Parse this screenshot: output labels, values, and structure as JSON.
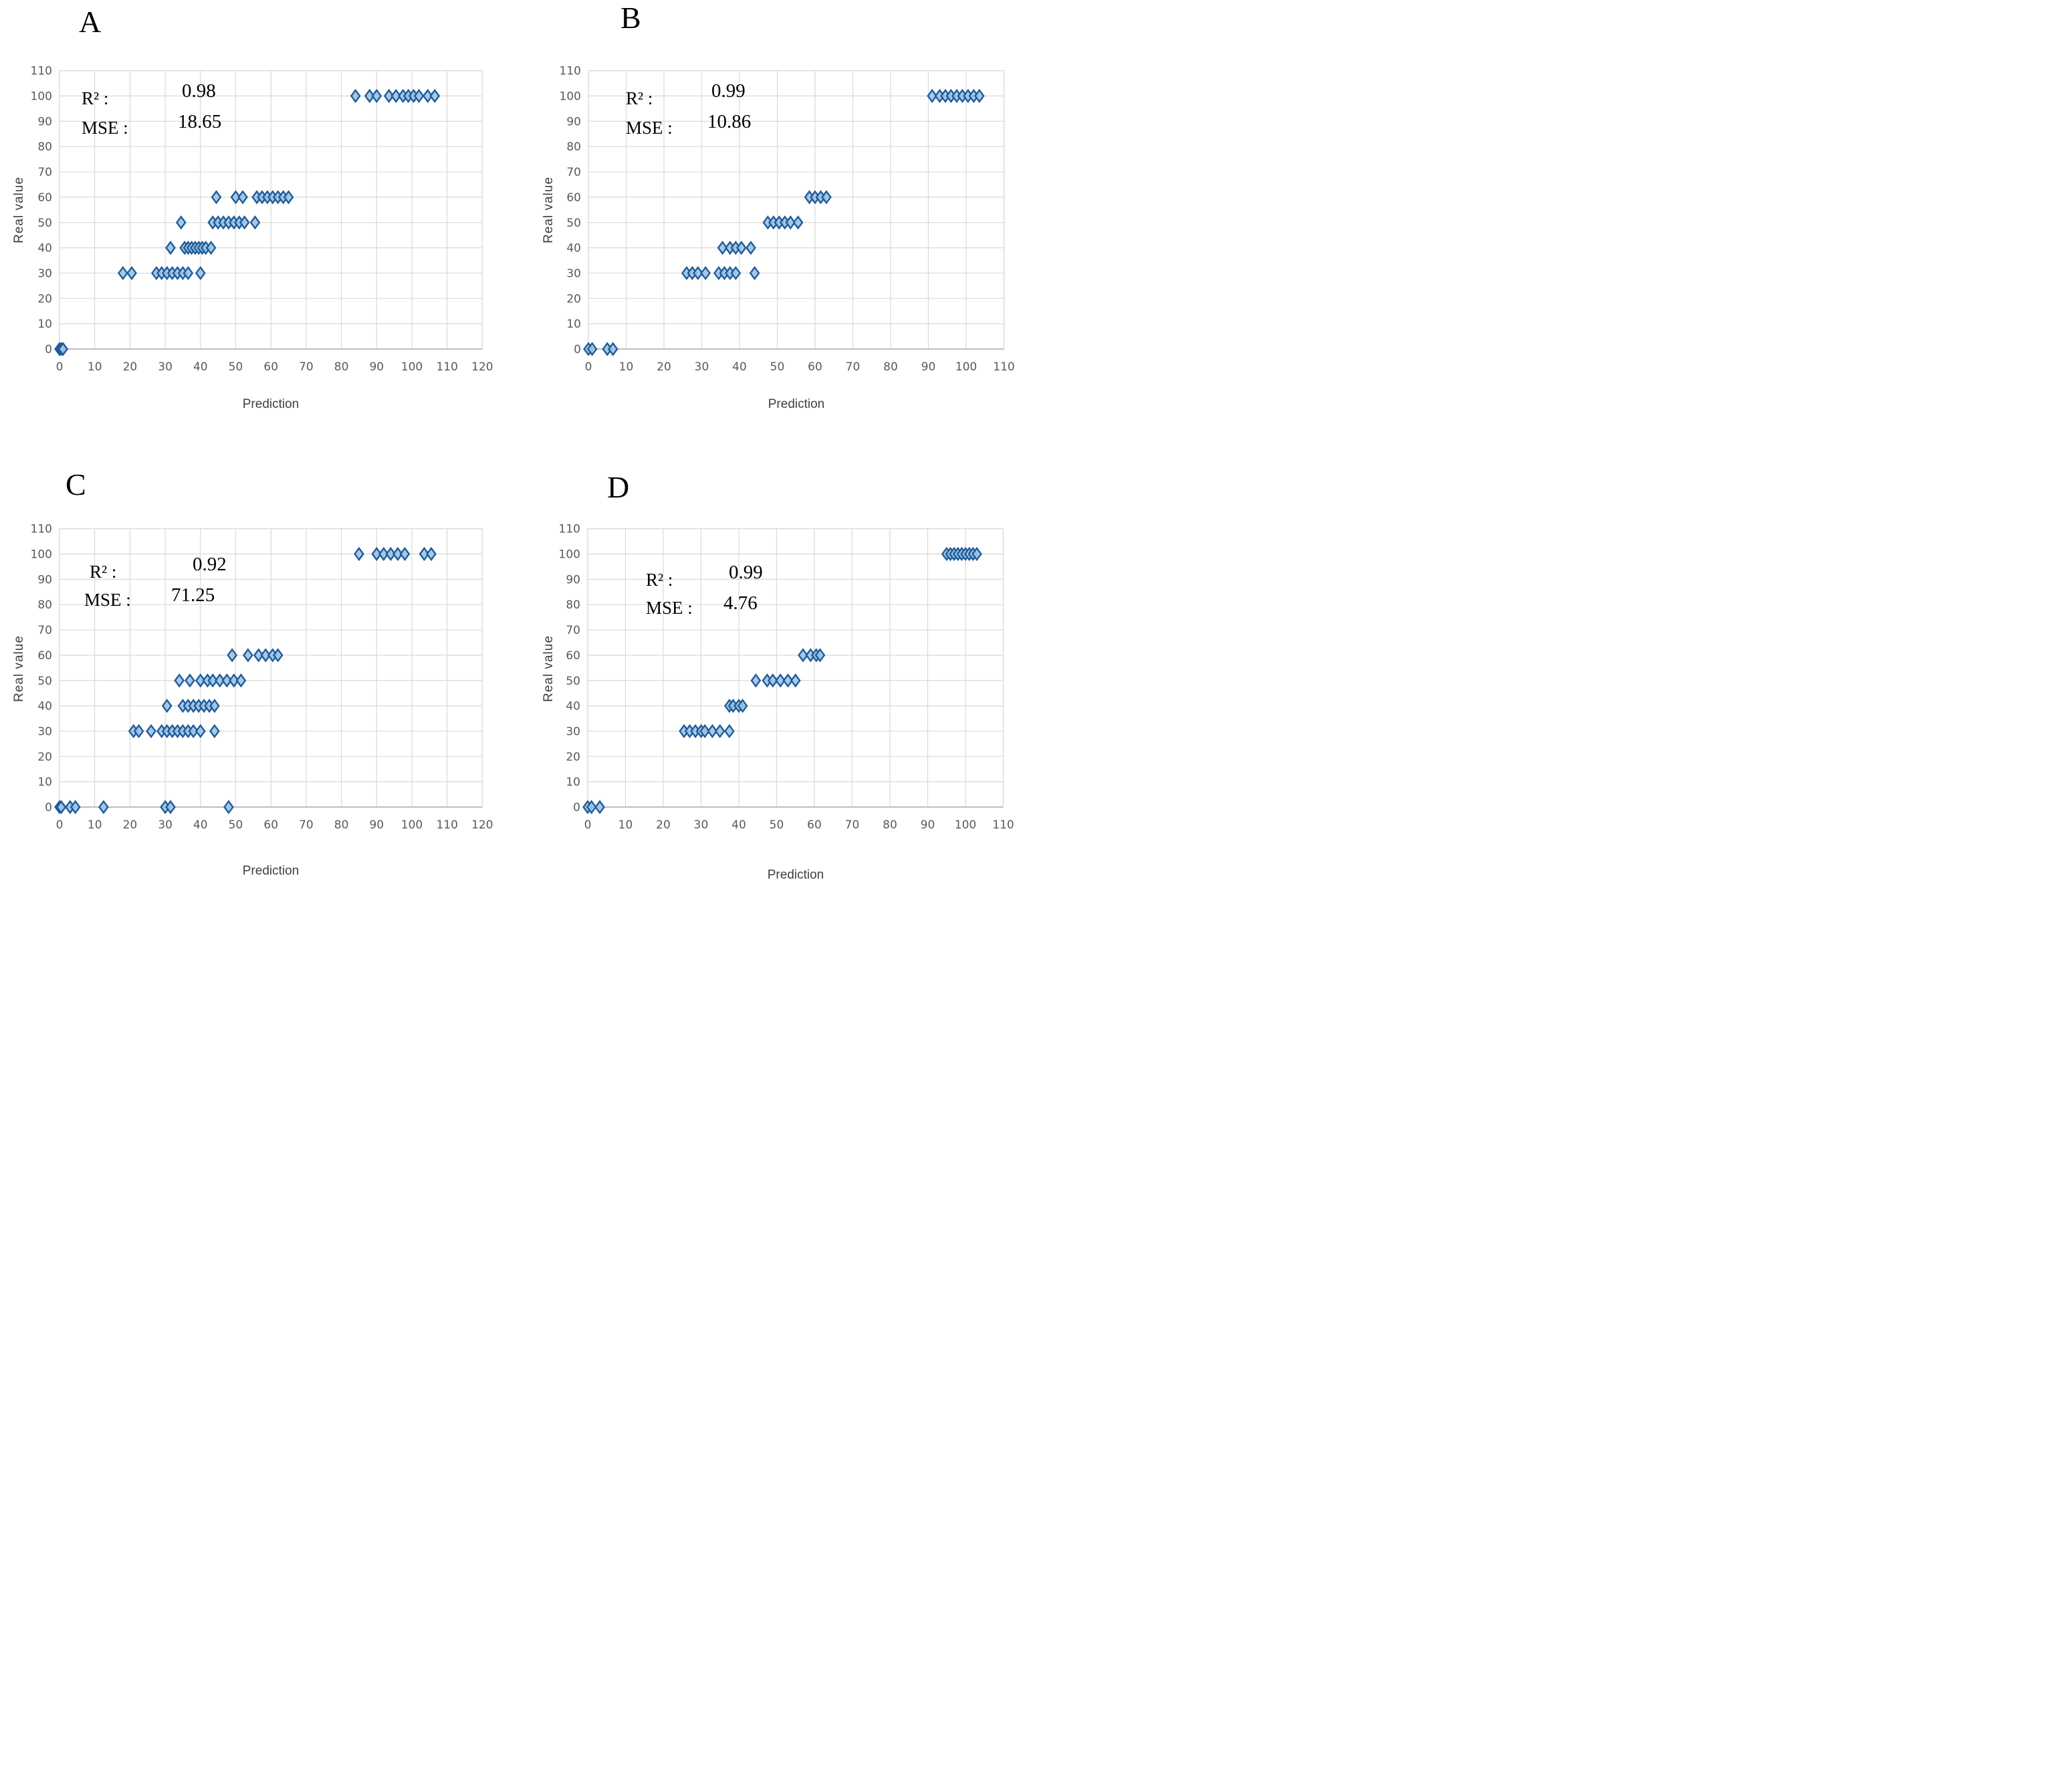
{
  "style": {
    "marker_fill": "#9DC3E6",
    "marker_stroke": "#1F5C99",
    "grid_color": "#D9D9D9",
    "axis_color": "#BFBFBF",
    "tick_color": "#595959",
    "label_color": "#3F3F3F"
  },
  "chart_data": [
    {
      "type": "scatter",
      "panel_label": "A",
      "xlabel": "Prediction",
      "ylabel": "Real value",
      "xlim": [
        0,
        120
      ],
      "ylim": [
        0,
        110
      ],
      "grid": true,
      "x_ticks": [
        0,
        10,
        20,
        30,
        40,
        50,
        60,
        70,
        80,
        90,
        100,
        110,
        120
      ],
      "y_ticks": [
        0,
        10,
        20,
        30,
        40,
        50,
        60,
        70,
        80,
        90,
        100,
        110
      ],
      "annotations": {
        "r2_label": "R² :",
        "r2_value": "0.98",
        "mse_label": "MSE :",
        "mse_value": "18.65"
      },
      "points": [
        [
          0,
          0
        ],
        [
          0.5,
          0
        ],
        [
          1,
          0
        ],
        [
          18,
          30
        ],
        [
          20.5,
          30
        ],
        [
          27.5,
          30
        ],
        [
          29,
          30
        ],
        [
          30.5,
          30
        ],
        [
          32,
          30
        ],
        [
          33.5,
          30
        ],
        [
          35,
          30
        ],
        [
          36.5,
          30
        ],
        [
          40,
          30
        ],
        [
          31.5,
          40
        ],
        [
          35.5,
          40
        ],
        [
          36.5,
          40
        ],
        [
          37.5,
          40
        ],
        [
          38.5,
          40
        ],
        [
          39.5,
          40
        ],
        [
          40.5,
          40
        ],
        [
          41.5,
          40
        ],
        [
          43,
          40
        ],
        [
          34.5,
          50
        ],
        [
          43.5,
          50
        ],
        [
          45,
          50
        ],
        [
          46.5,
          50
        ],
        [
          48,
          50
        ],
        [
          49.5,
          50
        ],
        [
          51,
          50
        ],
        [
          52.5,
          50
        ],
        [
          55.5,
          50
        ],
        [
          44.5,
          60
        ],
        [
          50,
          60
        ],
        [
          52,
          60
        ],
        [
          56,
          60
        ],
        [
          57.5,
          60
        ],
        [
          59,
          60
        ],
        [
          60.5,
          60
        ],
        [
          62,
          60
        ],
        [
          63.5,
          60
        ],
        [
          65,
          60
        ],
        [
          84,
          100
        ],
        [
          88,
          100
        ],
        [
          90,
          100
        ],
        [
          93.5,
          100
        ],
        [
          95.5,
          100
        ],
        [
          97.5,
          100
        ],
        [
          99,
          100
        ],
        [
          100.5,
          100
        ],
        [
          102,
          100
        ],
        [
          104.5,
          100
        ],
        [
          106.5,
          100
        ]
      ]
    },
    {
      "type": "scatter",
      "panel_label": "B",
      "xlabel": "Prediction",
      "ylabel": "Real value",
      "xlim": [
        0,
        110
      ],
      "ylim": [
        0,
        110
      ],
      "grid": true,
      "x_ticks": [
        0,
        10,
        20,
        30,
        40,
        50,
        60,
        70,
        80,
        90,
        100,
        110
      ],
      "y_ticks": [
        0,
        10,
        20,
        30,
        40,
        50,
        60,
        70,
        80,
        90,
        100,
        110
      ],
      "annotations": {
        "r2_label": "R² :",
        "r2_value": "0.99",
        "mse_label": "MSE :",
        "mse_value": "10.86"
      },
      "points": [
        [
          0,
          0
        ],
        [
          1,
          0
        ],
        [
          5,
          0
        ],
        [
          6.5,
          0
        ],
        [
          26,
          30
        ],
        [
          27.5,
          30
        ],
        [
          29,
          30
        ],
        [
          31,
          30
        ],
        [
          34.5,
          30
        ],
        [
          36,
          30
        ],
        [
          37.5,
          30
        ],
        [
          39,
          30
        ],
        [
          44,
          30
        ],
        [
          35.5,
          40
        ],
        [
          37.5,
          40
        ],
        [
          39,
          40
        ],
        [
          40.5,
          40
        ],
        [
          43,
          40
        ],
        [
          47.5,
          50
        ],
        [
          49,
          50
        ],
        [
          50.5,
          50
        ],
        [
          52,
          50
        ],
        [
          53.5,
          50
        ],
        [
          55.5,
          50
        ],
        [
          58.5,
          60
        ],
        [
          60,
          60
        ],
        [
          61.5,
          60
        ],
        [
          63,
          60
        ],
        [
          91,
          100
        ],
        [
          93,
          100
        ],
        [
          94.5,
          100
        ],
        [
          96,
          100
        ],
        [
          97.5,
          100
        ],
        [
          99,
          100
        ],
        [
          100.5,
          100
        ],
        [
          102,
          100
        ],
        [
          103.5,
          100
        ]
      ]
    },
    {
      "type": "scatter",
      "panel_label": "C",
      "xlabel": "Prediction",
      "ylabel": "Real value",
      "xlim": [
        0,
        120
      ],
      "ylim": [
        0,
        110
      ],
      "grid": true,
      "x_ticks": [
        0,
        10,
        20,
        30,
        40,
        50,
        60,
        70,
        80,
        90,
        100,
        110,
        120
      ],
      "y_ticks": [
        0,
        10,
        20,
        30,
        40,
        50,
        60,
        70,
        80,
        90,
        100,
        110
      ],
      "annotations": {
        "r2_label": "R² :",
        "r2_value": "0.92",
        "mse_label": "MSE :",
        "mse_value": "71.25"
      },
      "points": [
        [
          0,
          0
        ],
        [
          0.5,
          0
        ],
        [
          3,
          0
        ],
        [
          4.5,
          0
        ],
        [
          12.5,
          0
        ],
        [
          30,
          0
        ],
        [
          31.5,
          0
        ],
        [
          48,
          0
        ],
        [
          21,
          30
        ],
        [
          22.5,
          30
        ],
        [
          26,
          30
        ],
        [
          29,
          30
        ],
        [
          30.5,
          30
        ],
        [
          32,
          30
        ],
        [
          33.5,
          30
        ],
        [
          35,
          30
        ],
        [
          36.5,
          30
        ],
        [
          38,
          30
        ],
        [
          40,
          30
        ],
        [
          44,
          30
        ],
        [
          30.5,
          40
        ],
        [
          35,
          40
        ],
        [
          36.5,
          40
        ],
        [
          38,
          40
        ],
        [
          39.5,
          40
        ],
        [
          41,
          40
        ],
        [
          42.5,
          40
        ],
        [
          44,
          40
        ],
        [
          34,
          50
        ],
        [
          37,
          50
        ],
        [
          40,
          50
        ],
        [
          42,
          50
        ],
        [
          43.5,
          50
        ],
        [
          45.5,
          50
        ],
        [
          47.5,
          50
        ],
        [
          49.5,
          50
        ],
        [
          51.5,
          50
        ],
        [
          49,
          60
        ],
        [
          53.5,
          60
        ],
        [
          56.5,
          60
        ],
        [
          58.5,
          60
        ],
        [
          60.5,
          60
        ],
        [
          62,
          60
        ],
        [
          85,
          100
        ],
        [
          90,
          100
        ],
        [
          92,
          100
        ],
        [
          94,
          100
        ],
        [
          96,
          100
        ],
        [
          98,
          100
        ],
        [
          103.5,
          100
        ],
        [
          105.5,
          100
        ]
      ]
    },
    {
      "type": "scatter",
      "panel_label": "D",
      "xlabel": "Prediction",
      "ylabel": "Real value",
      "xlim": [
        0,
        110
      ],
      "ylim": [
        0,
        110
      ],
      "grid": true,
      "x_ticks": [
        0,
        10,
        20,
        30,
        40,
        50,
        60,
        70,
        80,
        90,
        100,
        110
      ],
      "y_ticks": [
        0,
        10,
        20,
        30,
        40,
        50,
        60,
        70,
        80,
        90,
        100,
        110
      ],
      "annotations": {
        "r2_label": "R² :",
        "r2_value": "0.99",
        "mse_label": "MSE :",
        "mse_value": "4.76"
      },
      "points": [
        [
          0,
          0
        ],
        [
          1,
          0
        ],
        [
          3.2,
          0
        ],
        [
          25.5,
          30
        ],
        [
          27,
          30
        ],
        [
          28.5,
          30
        ],
        [
          30,
          30
        ],
        [
          31,
          30
        ],
        [
          33,
          30
        ],
        [
          35,
          30
        ],
        [
          37.5,
          30
        ],
        [
          37.5,
          40
        ],
        [
          38.5,
          40
        ],
        [
          40,
          40
        ],
        [
          41,
          40
        ],
        [
          44.5,
          50
        ],
        [
          47.5,
          50
        ],
        [
          49,
          50
        ],
        [
          51,
          50
        ],
        [
          53,
          50
        ],
        [
          55,
          50
        ],
        [
          57,
          60
        ],
        [
          59,
          60
        ],
        [
          60.5,
          60
        ],
        [
          61.5,
          60
        ],
        [
          95,
          100
        ],
        [
          96,
          100
        ],
        [
          97,
          100
        ],
        [
          98,
          100
        ],
        [
          99,
          100
        ],
        [
          100,
          100
        ],
        [
          101,
          100
        ],
        [
          102,
          100
        ],
        [
          103,
          100
        ]
      ]
    }
  ]
}
